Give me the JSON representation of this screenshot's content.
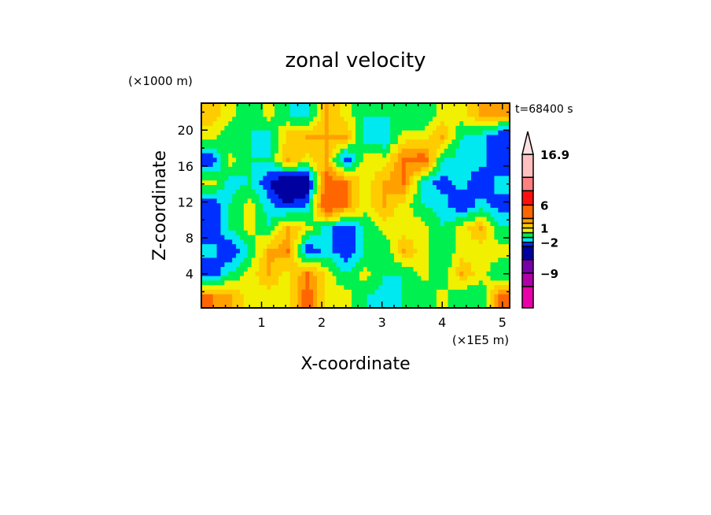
{
  "chart_data": {
    "type": "heatmap",
    "title": "zonal velocity",
    "xlabel": "X-coordinate",
    "ylabel": "Z-coordinate",
    "x_unit": "(×1E5 m)",
    "y_unit": "(×1000 m)",
    "annotation": "t=68400 s",
    "xlim": [
      0,
      5.12
    ],
    "ylim": [
      0.2,
      23
    ],
    "x_ticks": [
      "1",
      "2",
      "3",
      "4",
      "5"
    ],
    "x_tick_values": [
      1,
      2,
      3,
      4,
      5
    ],
    "y_ticks": [
      "4",
      "8",
      "12",
      "16",
      "20"
    ],
    "y_tick_values": [
      4,
      8,
      12,
      16,
      20
    ],
    "grid": false,
    "colorbar": {
      "placement": "right",
      "labels": [
        "16.9",
        "6",
        "1",
        "−2",
        "−9"
      ],
      "label_values": [
        16.9,
        6,
        1,
        -2,
        -9
      ],
      "levels": [
        -12,
        -9,
        -6,
        -3,
        -2,
        -1,
        0,
        1,
        2,
        3,
        6,
        9,
        12,
        16.9
      ],
      "colors": [
        "#e800a8",
        "#b000a8",
        "#7800a8",
        "#0000a0",
        "#0030ff",
        "#00e8f0",
        "#00f050",
        "#f0f000",
        "#ffcc00",
        "#ffa000",
        "#ff6600",
        "#ff1010",
        "#ff8080",
        "#ffc0c0"
      ],
      "over_color": "#ffe0e0"
    },
    "z_grid_note_rows_top_to_bottom": true,
    "z": [
      [
        1.5,
        0.5,
        -1,
        0.5,
        -1,
        -1.5,
        2,
        0.5,
        -1,
        -1,
        -1,
        -1,
        0.5,
        0.5,
        2,
        2
      ],
      [
        0.5,
        -1,
        -1,
        -1.5,
        1.5,
        2,
        2,
        2,
        -1.5,
        -2,
        0.5,
        0.5,
        2,
        -1,
        -1.5,
        -3
      ],
      [
        -3,
        0.5,
        -1,
        -1,
        2,
        0.5,
        2,
        -3,
        0.5,
        0.5,
        3,
        4,
        -1,
        -1.5,
        -1.5,
        -3
      ],
      [
        0.5,
        -1.5,
        -1,
        -3,
        -5,
        -4,
        4,
        3,
        0.5,
        2,
        3,
        -1.5,
        -2.5,
        -1.5,
        -3,
        -1.5
      ],
      [
        -3,
        -1,
        0.5,
        -1.5,
        -3,
        -2,
        5,
        3,
        0.5,
        2,
        0.5,
        -1,
        -1.5,
        -3,
        -1.5,
        -2.5
      ],
      [
        -3,
        -1,
        0.5,
        -1,
        2,
        0.5,
        -1.5,
        -3,
        -1,
        0.5,
        0.5,
        0.5,
        -1,
        0.5,
        2,
        -1
      ],
      [
        -1.5,
        -3,
        -1,
        2,
        3,
        -3,
        -1.5,
        -3,
        -1,
        -1,
        2,
        0.5,
        -1,
        0.5,
        0.5,
        0.5
      ],
      [
        -3,
        -1,
        0.5,
        2,
        0.5,
        3,
        0.5,
        -1,
        0.5,
        -1,
        -1,
        0.5,
        -1,
        2,
        0.5,
        -1
      ],
      [
        3,
        2,
        0.5,
        0.5,
        0.5,
        4,
        0.5,
        0.5,
        -1,
        -1.5,
        -1,
        -1,
        0.5,
        -1,
        -1,
        3
      ]
    ]
  }
}
